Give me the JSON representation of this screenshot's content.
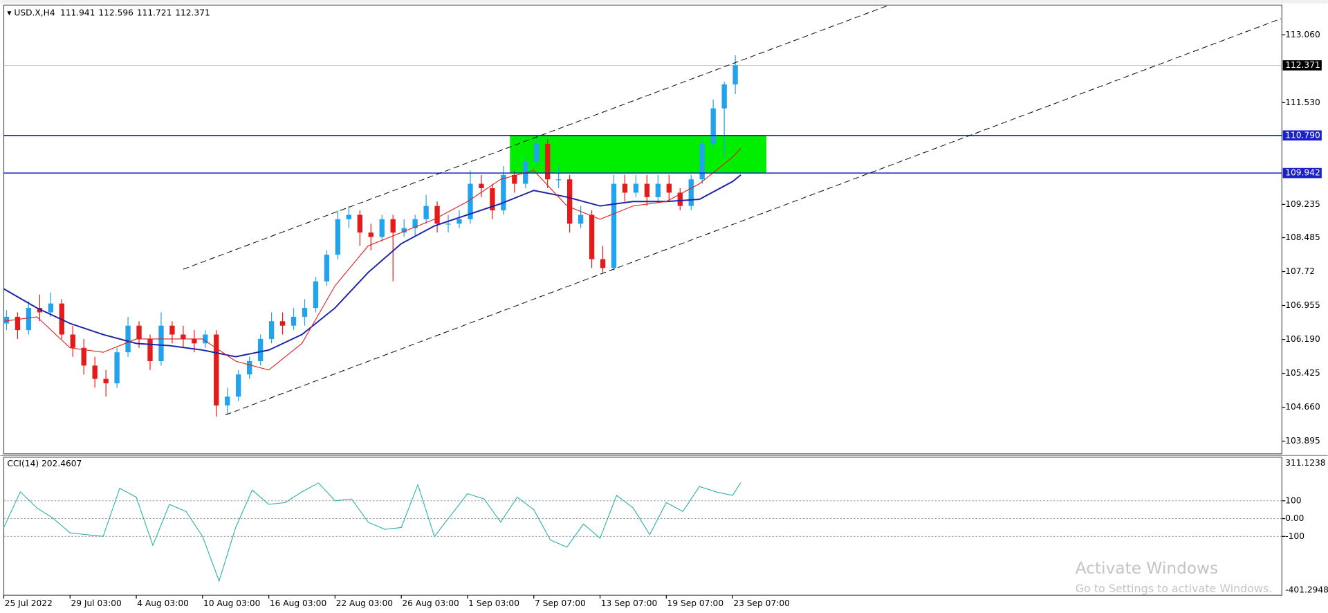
{
  "chart_data": [
    {
      "type": "candlestick",
      "title": "USD.X,H4",
      "up_color": "#22a3ee",
      "down_color": "#e41b1b",
      "xlim": [
        0,
        463
      ],
      "ylim": [
        103.61,
        113.73
      ],
      "yticks": [
        {
          "value": 113.06,
          "label": "113.060"
        },
        {
          "value": 111.53,
          "label": "111.530"
        },
        109.235,
        108.485,
        107.72,
        106.955,
        {
          "value": 106.19,
          "label": "106.190"
        },
        105.425,
        {
          "value": 104.66,
          "label": "104.660"
        },
        103.895
      ],
      "x": [
        1,
        5,
        9,
        13,
        17,
        21,
        25,
        29,
        33,
        37,
        41,
        45,
        49,
        53,
        57,
        61,
        65,
        69,
        73,
        77,
        81,
        85,
        89,
        93,
        97,
        101,
        105,
        109,
        113,
        117,
        121,
        125,
        129,
        133,
        137,
        141,
        145,
        149,
        153,
        157,
        161,
        165,
        169,
        173,
        177,
        181,
        185,
        189,
        193,
        197,
        201,
        205,
        209,
        213,
        217,
        221,
        225,
        229,
        233,
        237,
        241,
        245,
        249,
        253,
        257,
        261,
        265
      ],
      "candles": [
        [
          106.55,
          106.85,
          106.4,
          106.7
        ],
        [
          106.7,
          106.8,
          106.2,
          106.4
        ],
        [
          106.4,
          107.05,
          106.3,
          106.9
        ],
        [
          106.9,
          107.2,
          106.6,
          106.8
        ],
        [
          106.8,
          107.25,
          106.7,
          107.0
        ],
        [
          107.0,
          107.1,
          106.2,
          106.3
        ],
        [
          106.3,
          106.5,
          105.8,
          106.0
        ],
        [
          106.0,
          106.2,
          105.4,
          105.6
        ],
        [
          105.6,
          105.8,
          105.1,
          105.3
        ],
        [
          105.3,
          105.5,
          104.9,
          105.2
        ],
        [
          105.2,
          106.0,
          105.1,
          105.9
        ],
        [
          105.9,
          106.7,
          105.8,
          106.5
        ],
        [
          106.5,
          106.6,
          106.0,
          106.2
        ],
        [
          106.2,
          106.3,
          105.5,
          105.7
        ],
        [
          105.7,
          106.8,
          105.6,
          106.5
        ],
        [
          106.5,
          106.6,
          106.1,
          106.3
        ],
        [
          106.3,
          106.5,
          106.0,
          106.2
        ],
        [
          106.2,
          106.4,
          105.9,
          106.1
        ],
        [
          106.1,
          106.4,
          106.0,
          106.3
        ],
        [
          106.3,
          106.4,
          104.45,
          104.7
        ],
        [
          104.7,
          105.1,
          104.5,
          104.9
        ],
        [
          104.9,
          105.5,
          104.8,
          105.4
        ],
        [
          105.4,
          105.8,
          105.3,
          105.7
        ],
        [
          105.7,
          106.3,
          105.6,
          106.2
        ],
        [
          106.2,
          106.8,
          106.1,
          106.6
        ],
        [
          106.6,
          106.8,
          106.3,
          106.5
        ],
        [
          106.5,
          106.9,
          106.4,
          106.7
        ],
        [
          106.7,
          107.1,
          106.5,
          106.9
        ],
        [
          106.9,
          107.6,
          106.8,
          107.5
        ],
        [
          107.5,
          108.2,
          107.4,
          108.1
        ],
        [
          108.1,
          109.1,
          108.0,
          108.9
        ],
        [
          108.9,
          109.2,
          108.7,
          109.0
        ],
        [
          109.0,
          109.1,
          108.3,
          108.6
        ],
        [
          108.6,
          108.8,
          108.2,
          108.5
        ],
        [
          108.5,
          109.0,
          108.4,
          108.9
        ],
        [
          108.9,
          109.0,
          107.5,
          108.6
        ],
        [
          108.6,
          108.9,
          108.5,
          108.7
        ],
        [
          108.7,
          109.0,
          108.5,
          108.9
        ],
        [
          108.9,
          109.45,
          108.8,
          109.2
        ],
        [
          109.2,
          109.3,
          108.6,
          108.8
        ],
        [
          108.8,
          109.0,
          108.6,
          108.8
        ],
        [
          108.8,
          109.1,
          108.7,
          108.9
        ],
        [
          108.9,
          110.0,
          108.8,
          109.7
        ],
        [
          109.7,
          109.9,
          109.4,
          109.6
        ],
        [
          109.6,
          109.7,
          108.9,
          109.1
        ],
        [
          109.1,
          110.1,
          109.0,
          109.9
        ],
        [
          109.9,
          110.0,
          109.5,
          109.7
        ],
        [
          109.7,
          110.3,
          109.6,
          110.2
        ],
        [
          110.2,
          110.8,
          110.1,
          110.6
        ],
        [
          110.6,
          110.7,
          109.6,
          109.8
        ],
        [
          109.8,
          110.1,
          109.6,
          109.8
        ],
        [
          109.8,
          109.9,
          108.6,
          108.8
        ],
        [
          108.8,
          109.2,
          108.7,
          109.0
        ],
        [
          109.0,
          109.1,
          107.8,
          108.0
        ],
        [
          108.0,
          108.3,
          107.7,
          107.8
        ],
        [
          107.8,
          109.9,
          107.75,
          109.7
        ],
        [
          109.7,
          109.9,
          109.3,
          109.5
        ],
        [
          109.5,
          109.9,
          109.4,
          109.7
        ],
        [
          109.7,
          109.9,
          109.2,
          109.4
        ],
        [
          109.4,
          109.9,
          109.3,
          109.7
        ],
        [
          109.7,
          109.9,
          109.3,
          109.5
        ],
        [
          109.5,
          109.6,
          109.1,
          109.2
        ],
        [
          109.2,
          109.9,
          109.1,
          109.8
        ],
        [
          109.8,
          110.7,
          109.7,
          110.6
        ],
        [
          110.6,
          111.6,
          110.5,
          111.4
        ],
        [
          111.4,
          112.0,
          110.3,
          111.941
        ],
        [
          111.941,
          112.596,
          111.721,
          112.371
        ]
      ],
      "lines": [
        {
          "color": "#1c22a8",
          "x": [
            0,
            12,
            24,
            36,
            48,
            60,
            72,
            84,
            96,
            108,
            120,
            132,
            144,
            156,
            168,
            180,
            192,
            204,
            216,
            228,
            240,
            252,
            264,
            267
          ],
          "values": [
            107.33,
            106.9,
            106.55,
            106.3,
            106.1,
            106.05,
            105.95,
            105.8,
            105.95,
            106.3,
            106.9,
            107.7,
            108.35,
            108.75,
            109.0,
            109.25,
            109.55,
            109.4,
            109.2,
            109.3,
            109.3,
            109.35,
            109.75,
            109.9
          ]
        },
        {
          "color": "#e41b1b",
          "x": [
            0,
            12,
            24,
            36,
            48,
            60,
            72,
            84,
            96,
            108,
            120,
            132,
            144,
            156,
            168,
            180,
            192,
            204,
            216,
            228,
            240,
            252,
            264,
            267
          ],
          "values": [
            106.6,
            106.7,
            106.0,
            105.9,
            106.2,
            106.2,
            106.2,
            105.7,
            105.5,
            106.1,
            107.4,
            108.3,
            108.6,
            108.9,
            109.3,
            109.8,
            110.0,
            109.2,
            108.9,
            109.2,
            109.3,
            109.7,
            110.3,
            110.5
          ]
        }
      ],
      "levels": [
        {
          "value": 110.79,
          "label": "110.790"
        },
        109.942
      ],
      "level_color": "#1c22c8",
      "zone_color": "#00ee00"
    },
    {
      "type": "line",
      "title": "CCI(14) 202.4607",
      "color": "#2ab0a8",
      "xlim": [
        0,
        463
      ],
      "ylim": [
        -401.2948,
        311.1238
      ],
      "yticks": [
        100,
        {
          "value": 0,
          "label": "0.00"
        },
        -100
      ],
      "x": [
        0,
        6,
        12,
        18,
        24,
        30,
        36,
        42,
        48,
        54,
        60,
        66,
        72,
        78,
        84,
        90,
        96,
        102,
        108,
        114,
        120,
        126,
        132,
        138,
        144,
        150,
        156,
        162,
        168,
        174,
        180,
        186,
        192,
        198,
        204,
        210,
        216,
        222,
        228,
        234,
        240,
        246,
        252,
        258,
        264,
        267
      ],
      "values": [
        -50,
        150,
        60,
        0,
        -80,
        -90,
        -100,
        170,
        120,
        -150,
        80,
        40,
        -100,
        -350,
        -50,
        160,
        80,
        90,
        150,
        200,
        100,
        110,
        -20,
        -60,
        -50,
        190,
        -100,
        20,
        140,
        110,
        -20,
        120,
        50,
        -120,
        -160,
        -30,
        -110,
        130,
        60,
        -90,
        90,
        40,
        180,
        150,
        130,
        202.4607
      ],
      "xticks": [
        {
          "value": 0,
          "label": "25 Jul 2022"
        },
        {
          "value": 24,
          "label": "29 Jul 03:00"
        },
        {
          "value": 48,
          "label": "4 Aug 03:00"
        },
        {
          "value": 72,
          "label": "10 Aug 03:00"
        },
        {
          "value": 96,
          "label": "16 Aug 03:00"
        },
        {
          "value": 120,
          "label": "22 Aug 03:00"
        },
        {
          "value": 144,
          "label": "26 Aug 03:00"
        },
        {
          "value": 168,
          "label": "1 Sep 03:00"
        },
        {
          "value": 192,
          "label": "7 Sep 07:00"
        },
        {
          "value": 216,
          "label": "13 Sep 07:00"
        },
        {
          "value": 240,
          "label": "19 Sep 07:00"
        },
        {
          "value": 264,
          "label": "23 Sep 07:00"
        }
      ]
    }
  ],
  "watermark": {
    "title": "Activate Windows",
    "subtitle": "Go to Settings to activate Windows."
  }
}
